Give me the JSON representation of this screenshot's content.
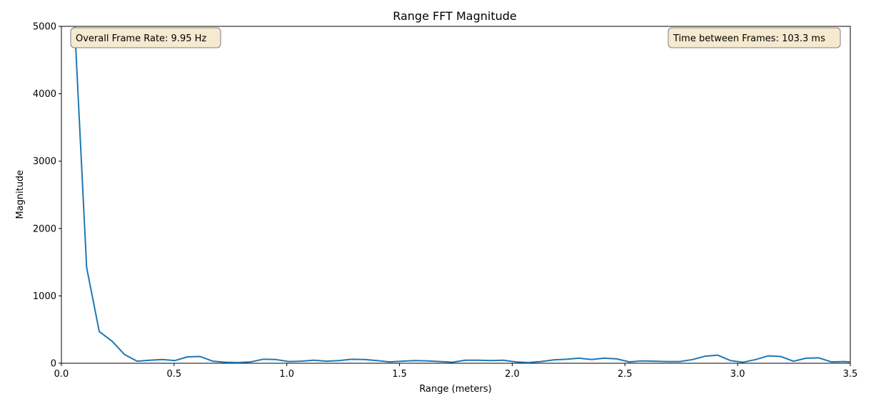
{
  "chart_data": {
    "type": "line",
    "title": "Range FFT Magnitude",
    "xlabel": "Range (meters)",
    "ylabel": "Magnitude",
    "xlim": [
      0.0,
      3.5
    ],
    "ylim": [
      0,
      5000
    ],
    "xticks": [
      "0.0",
      "0.5",
      "1.0",
      "1.5",
      "2.0",
      "2.5",
      "3.0",
      "3.5"
    ],
    "yticks": [
      "0",
      "1000",
      "2000",
      "3000",
      "4000",
      "5000"
    ],
    "grid": false,
    "series": [
      {
        "color": "#1f77b4",
        "x": [
          0.056,
          0.112,
          0.168,
          0.224,
          0.28,
          0.336,
          0.392,
          0.448,
          0.504,
          0.56,
          0.616,
          0.672,
          0.728,
          0.784,
          0.84,
          0.896,
          0.952,
          1.008,
          1.064,
          1.12,
          1.176,
          1.232,
          1.288,
          1.344,
          1.4,
          1.456,
          1.512,
          1.568,
          1.624,
          1.68,
          1.736,
          1.792,
          1.848,
          1.904,
          1.96,
          2.016,
          2.072,
          2.128,
          2.184,
          2.24,
          2.296,
          2.352,
          2.408,
          2.464,
          2.52,
          2.576,
          2.632,
          2.688,
          2.744,
          2.8,
          2.856,
          2.912,
          2.968,
          3.024,
          3.08,
          3.136,
          3.192,
          3.248,
          3.304,
          3.36,
          3.416,
          3.472,
          3.5
        ],
        "y": [
          5200,
          1420,
          470,
          330,
          130,
          30,
          45,
          55,
          40,
          95,
          100,
          30,
          15,
          10,
          20,
          60,
          55,
          25,
          30,
          45,
          30,
          40,
          60,
          55,
          40,
          20,
          30,
          40,
          35,
          25,
          15,
          45,
          45,
          40,
          45,
          20,
          10,
          25,
          50,
          60,
          75,
          55,
          75,
          65,
          20,
          35,
          30,
          25,
          25,
          55,
          105,
          120,
          40,
          15,
          55,
          110,
          100,
          30,
          75,
          80,
          20,
          25,
          20
        ]
      }
    ]
  },
  "annotations": {
    "left": "Overall Frame Rate: 9.95 Hz",
    "right": "Time between Frames: 103.3 ms",
    "box_fill": "#f5e9cf",
    "box_stroke": "#7f7f7f"
  }
}
